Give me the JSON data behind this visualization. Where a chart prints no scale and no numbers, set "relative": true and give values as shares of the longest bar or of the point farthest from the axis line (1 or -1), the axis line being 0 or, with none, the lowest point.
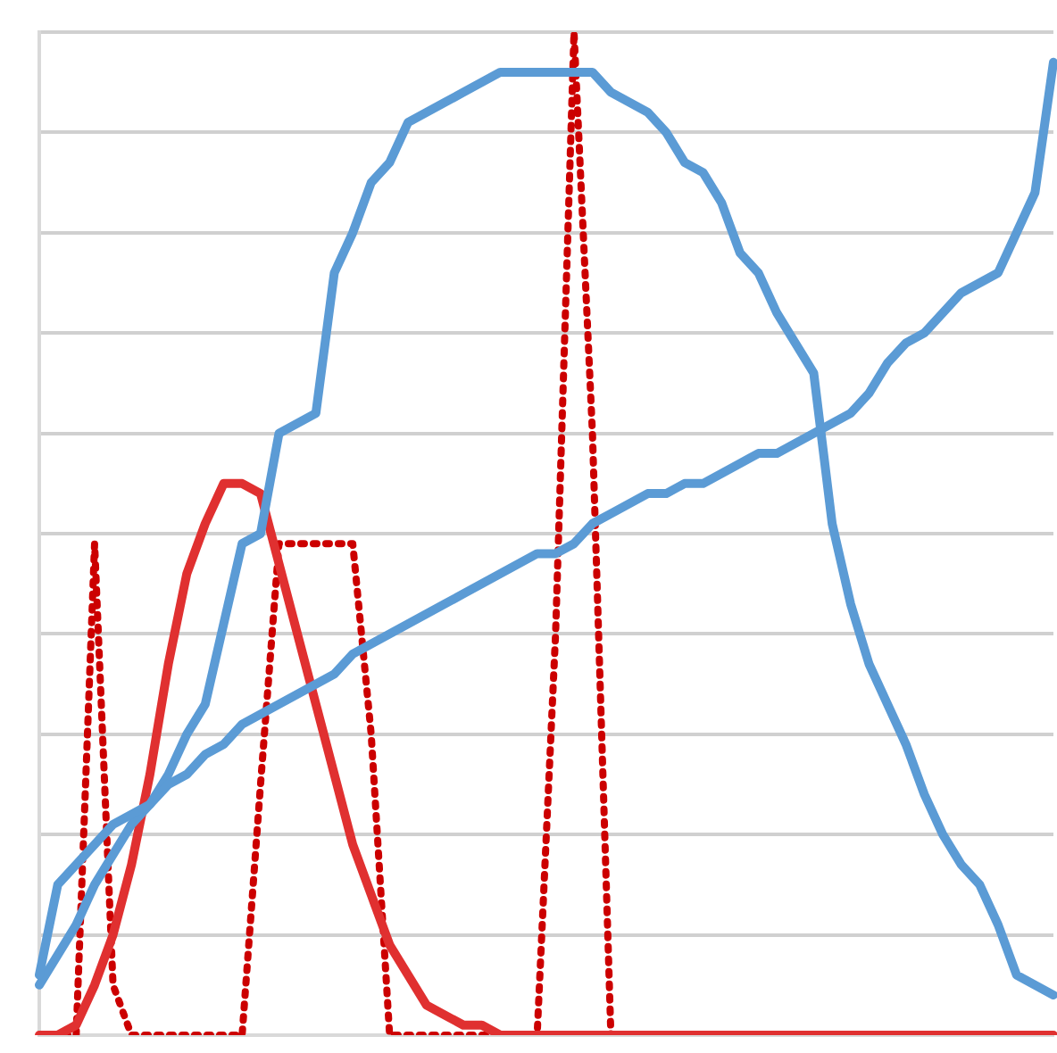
{
  "chart_data": {
    "type": "line",
    "relative": true,
    "grid": "y",
    "marker": "none",
    "categories": [
      null,
      null,
      null,
      null,
      null,
      null,
      null,
      null,
      null,
      null,
      null,
      null,
      null,
      null,
      null,
      null,
      null,
      null,
      null,
      null,
      null,
      null,
      null,
      null,
      null,
      null,
      null,
      null,
      null,
      null,
      null,
      null,
      null,
      null,
      null,
      null,
      null,
      null,
      null,
      null,
      null,
      null,
      null,
      null,
      null,
      null,
      null,
      null,
      null,
      null,
      null,
      null,
      null,
      null,
      null,
      null
    ],
    "series": [
      {
        "color": "#5b9bd5",
        "line_style": "solid",
        "values": [
          0.06,
          0.15,
          0.17,
          0.19,
          0.21,
          0.22,
          0.23,
          0.25,
          0.26,
          0.28,
          0.29,
          0.31,
          0.32,
          0.33,
          0.34,
          0.35,
          0.36,
          0.38,
          0.39,
          0.4,
          0.41,
          0.42,
          0.43,
          0.44,
          0.45,
          0.46,
          0.47,
          0.48,
          0.48,
          0.49,
          0.51,
          0.52,
          0.53,
          0.54,
          0.54,
          0.55,
          0.55,
          0.56,
          0.57,
          0.58,
          0.58,
          0.59,
          0.6,
          0.61,
          0.62,
          0.64,
          0.67,
          0.69,
          0.7,
          0.72,
          0.74,
          0.75,
          0.76,
          0.8,
          0.84,
          0.97
        ]
      },
      {
        "color": "#5b9bd5",
        "line_style": "solid",
        "values": [
          0.05,
          0.08,
          0.11,
          0.15,
          0.18,
          0.21,
          0.23,
          0.26,
          0.3,
          0.33,
          0.41,
          0.49,
          0.5,
          0.6,
          0.61,
          0.62,
          0.76,
          0.8,
          0.85,
          0.87,
          0.91,
          0.92,
          0.93,
          0.94,
          0.95,
          0.96,
          0.96,
          0.96,
          0.96,
          0.96,
          0.96,
          0.94,
          0.93,
          0.92,
          0.9,
          0.87,
          0.86,
          0.83,
          0.78,
          0.76,
          0.72,
          0.69,
          0.66,
          0.51,
          0.43,
          0.37,
          0.33,
          0.29,
          0.24,
          0.2,
          0.17,
          0.15,
          0.11,
          0.06,
          0.05,
          0.04
        ]
      },
      {
        "color": "#e03030",
        "line_style": "solid",
        "values": [
          0,
          0,
          0.01,
          0.05,
          0.1,
          0.17,
          0.26,
          0.37,
          0.46,
          0.51,
          0.55,
          0.55,
          0.54,
          0.47,
          0.4,
          0.33,
          0.26,
          0.19,
          0.14,
          0.09,
          0.06,
          0.03,
          0.02,
          0.01,
          0.01,
          0,
          0,
          0,
          0,
          0,
          0,
          0,
          0,
          0,
          0,
          0,
          0,
          0,
          0,
          0,
          0,
          0,
          0,
          0,
          0,
          0,
          0,
          0,
          0,
          0,
          0,
          0,
          0,
          0,
          0,
          0
        ]
      },
      {
        "color": "#cc0000",
        "line_style": "dotted",
        "values": [
          0,
          0,
          0,
          0.49,
          0.05,
          0,
          0,
          0,
          0,
          0,
          0,
          0,
          0.25,
          0.49,
          0.49,
          0.49,
          0.49,
          0.49,
          0.3,
          0,
          0,
          0,
          0,
          0,
          0,
          0,
          0,
          0,
          0.4,
          1.0,
          0.6,
          0,
          0,
          0,
          0,
          0,
          0,
          0,
          0,
          0,
          0,
          0,
          0,
          0,
          0,
          0,
          0,
          0,
          0,
          0,
          0,
          0,
          0,
          0,
          0,
          null
        ]
      }
    ]
  }
}
